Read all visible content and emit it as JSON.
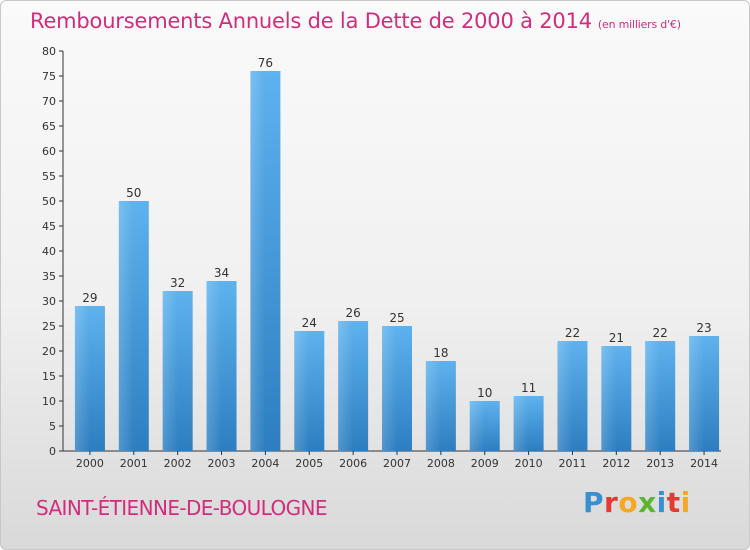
{
  "title": "Remboursements Annuels de la Dette de 2000 à 2014",
  "unit": "(en milliers d'€)",
  "commune": "SAINT-ÉTIENNE-DE-BOULOGNE",
  "logo": {
    "letters": [
      "P",
      "r",
      "o",
      "x",
      "i",
      "t",
      "i"
    ],
    "colors": [
      "#3a8fd0",
      "#e53a2f",
      "#f6a823",
      "#5cb531",
      "#3a8fd0",
      "#e53a2f",
      "#f6a823"
    ]
  },
  "chart_data": {
    "type": "bar",
    "categories": [
      "2000",
      "2001",
      "2002",
      "2003",
      "2004",
      "2005",
      "2006",
      "2007",
      "2008",
      "2009",
      "2010",
      "2011",
      "2012",
      "2013",
      "2014"
    ],
    "values": [
      29,
      50,
      32,
      34,
      76,
      24,
      26,
      25,
      18,
      10,
      11,
      22,
      21,
      22,
      23
    ],
    "ylim": [
      0,
      80
    ],
    "ytick_step": 5,
    "grid": false,
    "bar_color": "#4a9fe0"
  }
}
